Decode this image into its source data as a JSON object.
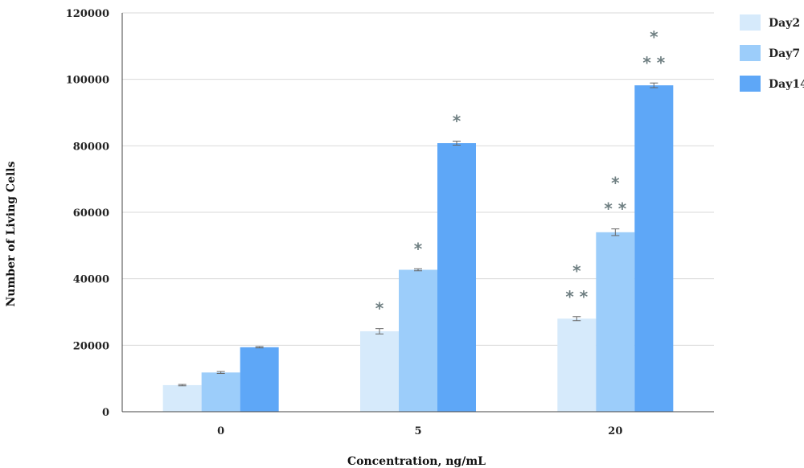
{
  "chart_data": {
    "type": "bar",
    "xlabel": "Concentration, ng/mL",
    "ylabel": "Number of Living Cells",
    "categories": [
      "0",
      "5",
      "20"
    ],
    "ylim": [
      0,
      120000
    ],
    "yticks": [
      0,
      20000,
      40000,
      60000,
      80000,
      100000,
      120000
    ],
    "grid": true,
    "legend_position": "top-right",
    "series": [
      {
        "name": "Day2",
        "color": "#d6eafb",
        "values": [
          8000,
          24200,
          28000
        ],
        "errors": [
          200,
          800,
          600
        ],
        "markers": [
          "",
          "*",
          "*\n**"
        ]
      },
      {
        "name": "Day7",
        "color": "#9ccdfa",
        "values": [
          11800,
          42700,
          54000
        ],
        "errors": [
          300,
          300,
          1000
        ],
        "markers": [
          "",
          "*",
          "*\n**"
        ]
      },
      {
        "name": "Day14",
        "color": "#5ea7f7",
        "values": [
          19400,
          80800,
          98200
        ],
        "errors": [
          200,
          600,
          700
        ],
        "markers": [
          "",
          "*",
          "*\n**"
        ]
      }
    ]
  }
}
